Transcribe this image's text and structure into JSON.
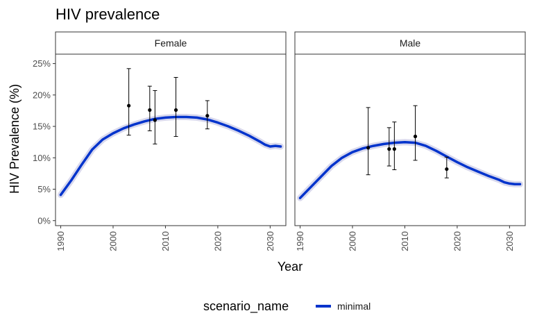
{
  "chart_data": {
    "type": "line",
    "title": "HIV prevalence",
    "xlabel": "Year",
    "ylabel": "HIV Prevalence (%)",
    "xlim": [
      1989,
      2033
    ],
    "ylim": [
      -0.8,
      26.5
    ],
    "x_ticks": [
      1990,
      2000,
      2010,
      2020,
      2030
    ],
    "y_ticks": [
      0,
      5,
      10,
      15,
      20,
      25
    ],
    "y_tick_suffix": "%",
    "grid": false,
    "legend": {
      "position": "bottom",
      "title": "scenario_name",
      "entries": [
        {
          "label": "minimal",
          "color": "#0033cc"
        }
      ]
    },
    "series_color": "#0033cc",
    "band_color": "#c8c8e6",
    "panels": [
      {
        "name": "Female",
        "series": [
          {
            "name": "minimal",
            "x": [
              1990,
              1992,
              1994,
              1996,
              1998,
              2000,
              2002,
              2004,
              2006,
              2008,
              2010,
              2012,
              2014,
              2016,
              2018,
              2020,
              2022,
              2024,
              2026,
              2028,
              2029,
              2030,
              2031,
              2032
            ],
            "y": [
              4.1,
              6.4,
              8.9,
              11.3,
              12.9,
              13.9,
              14.7,
              15.3,
              15.8,
              16.2,
              16.4,
              16.5,
              16.5,
              16.4,
              16.1,
              15.6,
              15.0,
              14.3,
              13.5,
              12.6,
              12.1,
              11.8,
              11.9,
              11.8
            ]
          }
        ],
        "observations": [
          {
            "x": 2003,
            "y": 18.3,
            "lo": 13.6,
            "hi": 24.2
          },
          {
            "x": 2007,
            "y": 17.6,
            "lo": 14.3,
            "hi": 21.4
          },
          {
            "x": 2008,
            "y": 16.0,
            "lo": 12.2,
            "hi": 20.7
          },
          {
            "x": 2012,
            "y": 17.6,
            "lo": 13.4,
            "hi": 22.8
          },
          {
            "x": 2018,
            "y": 16.7,
            "lo": 14.6,
            "hi": 19.1
          }
        ]
      },
      {
        "name": "Male",
        "series": [
          {
            "name": "minimal",
            "x": [
              1990,
              1992,
              1994,
              1996,
              1998,
              2000,
              2002,
              2004,
              2006,
              2008,
              2010,
              2012,
              2014,
              2016,
              2018,
              2020,
              2022,
              2024,
              2026,
              2028,
              2029,
              2030,
              2031,
              2032
            ],
            "y": [
              3.6,
              5.3,
              7.0,
              8.7,
              10.0,
              10.9,
              11.5,
              11.9,
              12.2,
              12.4,
              12.5,
              12.4,
              11.9,
              11.1,
              10.2,
              9.3,
              8.5,
              7.8,
              7.1,
              6.5,
              6.1,
              5.9,
              5.8,
              5.8
            ]
          }
        ],
        "observations": [
          {
            "x": 2003,
            "y": 11.6,
            "lo": 7.3,
            "hi": 18.0
          },
          {
            "x": 2007,
            "y": 11.4,
            "lo": 8.7,
            "hi": 14.8
          },
          {
            "x": 2008,
            "y": 11.4,
            "lo": 8.1,
            "hi": 15.7
          },
          {
            "x": 2012,
            "y": 13.4,
            "lo": 9.6,
            "hi": 18.3
          },
          {
            "x": 2018,
            "y": 8.2,
            "lo": 6.8,
            "hi": 10.1
          }
        ]
      }
    ]
  }
}
